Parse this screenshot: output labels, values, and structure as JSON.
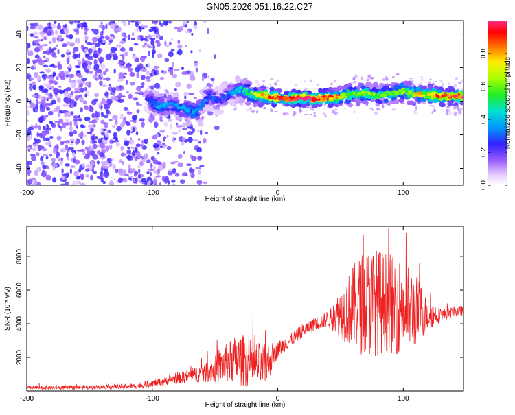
{
  "page_title": "GN05.2026.051.16.22.C27",
  "colors": {
    "snr_line": "#ee2222",
    "track_base": "#7733ff",
    "background": "#ffffff"
  },
  "chart_data": [
    {
      "type": "heatmap",
      "title": "GN05.2026.051.16.22.C27",
      "xlabel": "Height of straight line (km)",
      "ylabel": "Frequency (Hz)",
      "xlim": [
        -200,
        148
      ],
      "ylim": [
        -50,
        48
      ],
      "x_ticks": [
        "-200",
        "-100",
        "0",
        "100"
      ],
      "x_tick_values": [
        -200,
        -100,
        0,
        100
      ],
      "y_ticks": [
        "-40",
        "-20",
        "0",
        "20",
        "40"
      ],
      "y_tick_values": [
        -40,
        -20,
        0,
        20,
        40
      ],
      "colorbar": {
        "label": "Normalized spectral amplitude",
        "ticks": [
          "0.0",
          "0.2",
          "0.4",
          "0.6",
          "0.8"
        ],
        "tick_values": [
          0.0,
          0.2,
          0.4,
          0.6,
          0.8
        ],
        "range": [
          0,
          1
        ]
      },
      "ridge": [
        {
          "x": -105,
          "f": 2,
          "a": 0.2
        },
        {
          "x": -95,
          "f": -3,
          "a": 0.4
        },
        {
          "x": -85,
          "f": -2,
          "a": 0.3
        },
        {
          "x": -75,
          "f": -4,
          "a": 0.4
        },
        {
          "x": -65,
          "f": -7,
          "a": 0.35
        },
        {
          "x": -55,
          "f": 4,
          "a": 0.3
        },
        {
          "x": -48,
          "f": 0,
          "a": 0.25
        },
        {
          "x": -40,
          "f": 4,
          "a": 0.3
        },
        {
          "x": -30,
          "f": 7,
          "a": 0.4
        },
        {
          "x": -20,
          "f": 4,
          "a": 0.6
        },
        {
          "x": -10,
          "f": 3,
          "a": 0.85
        },
        {
          "x": 0,
          "f": 2,
          "a": 0.9
        },
        {
          "x": 10,
          "f": 1.5,
          "a": 0.95
        },
        {
          "x": 20,
          "f": 2,
          "a": 0.95
        },
        {
          "x": 30,
          "f": 1.5,
          "a": 0.95
        },
        {
          "x": 40,
          "f": 2,
          "a": 0.9
        },
        {
          "x": 50,
          "f": 3,
          "a": 0.7
        },
        {
          "x": 60,
          "f": 4,
          "a": 0.6
        },
        {
          "x": 70,
          "f": 5,
          "a": 0.6
        },
        {
          "x": 80,
          "f": 3,
          "a": 0.55
        },
        {
          "x": 90,
          "f": 5,
          "a": 0.6
        },
        {
          "x": 100,
          "f": 6,
          "a": 0.65
        },
        {
          "x": 110,
          "f": 4,
          "a": 0.7
        },
        {
          "x": 120,
          "f": 4,
          "a": 0.8
        },
        {
          "x": 130,
          "f": 3,
          "a": 0.85
        },
        {
          "x": 140,
          "f": 3,
          "a": 0.9
        },
        {
          "x": 148,
          "f": 3,
          "a": 0.9
        }
      ]
    },
    {
      "type": "line",
      "xlabel": "Height of straight line (km)",
      "ylabel": "SNR (10 * v/v)",
      "xlim": [
        -200,
        148
      ],
      "ylim": [
        0,
        9800
      ],
      "x_ticks": [
        "-200",
        "-100",
        "0",
        "100"
      ],
      "x_tick_values": [
        -200,
        -100,
        0,
        100
      ],
      "y_ticks": [
        "2000",
        "4000",
        "6000",
        "8000"
      ],
      "y_tick_values": [
        2000,
        4000,
        6000,
        8000
      ],
      "envelope": [
        {
          "x": -200,
          "mean": 200,
          "spread": 120
        },
        {
          "x": -150,
          "mean": 220,
          "spread": 120
        },
        {
          "x": -110,
          "mean": 300,
          "spread": 150
        },
        {
          "x": -90,
          "mean": 600,
          "spread": 250
        },
        {
          "x": -70,
          "mean": 900,
          "spread": 400
        },
        {
          "x": -50,
          "mean": 1300,
          "spread": 800
        },
        {
          "x": -40,
          "mean": 1700,
          "spread": 1200
        },
        {
          "x": -30,
          "mean": 1900,
          "spread": 1600
        },
        {
          "x": -20,
          "mean": 1600,
          "spread": 1400
        },
        {
          "x": -10,
          "mean": 1500,
          "spread": 1300
        },
        {
          "x": 0,
          "mean": 2500,
          "spread": 500
        },
        {
          "x": 10,
          "mean": 3000,
          "spread": 400
        },
        {
          "x": 20,
          "mean": 3600,
          "spread": 400
        },
        {
          "x": 30,
          "mean": 4000,
          "spread": 400
        },
        {
          "x": 40,
          "mean": 4300,
          "spread": 500
        },
        {
          "x": 50,
          "mean": 4600,
          "spread": 1500
        },
        {
          "x": 60,
          "mean": 5000,
          "spread": 2500
        },
        {
          "x": 70,
          "mean": 5300,
          "spread": 3300
        },
        {
          "x": 80,
          "mean": 5300,
          "spread": 3200
        },
        {
          "x": 90,
          "mean": 5200,
          "spread": 3000
        },
        {
          "x": 100,
          "mean": 5000,
          "spread": 2800
        },
        {
          "x": 110,
          "mean": 4800,
          "spread": 2200
        },
        {
          "x": 120,
          "mean": 4600,
          "spread": 1000
        },
        {
          "x": 130,
          "mean": 4500,
          "spread": 400
        },
        {
          "x": 140,
          "mean": 4700,
          "spread": 300
        },
        {
          "x": 148,
          "mean": 4800,
          "spread": 300
        }
      ]
    }
  ]
}
